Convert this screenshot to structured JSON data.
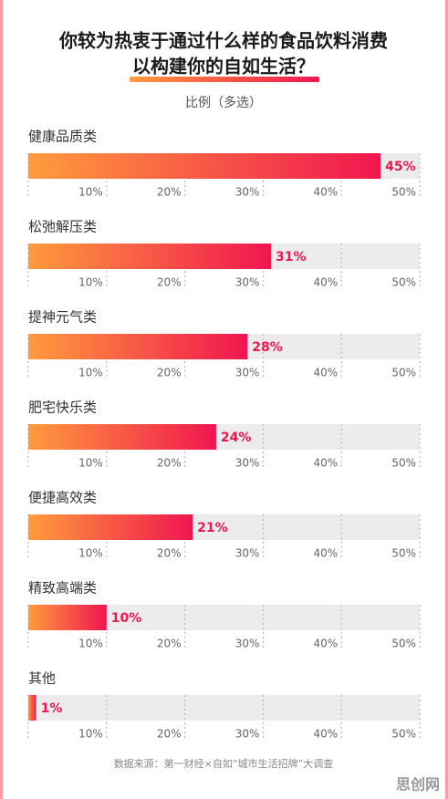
{
  "chart_data": {
    "type": "bar",
    "title": [
      "你较为热衷于通过什么样的食品饮料消费",
      "以构建你的自如生活？"
    ],
    "subtitle": "比例（多选）",
    "categories": [
      "健康品质类",
      "松弛解压类",
      "提神元气类",
      "肥宅快乐类",
      "便捷高效类",
      "精致高端类",
      "其他"
    ],
    "values": [
      45,
      31,
      28,
      24,
      21,
      10,
      1
    ],
    "value_labels": [
      "45%",
      "31%",
      "28%",
      "24%",
      "21%",
      "10%",
      "1%"
    ],
    "colors": [
      "#ff9b3d",
      "#f0164f"
    ],
    "xlim": [
      0,
      50
    ],
    "xticks": [
      {
        "value": 10,
        "label": "10%"
      },
      {
        "value": 20,
        "label": "20%"
      },
      {
        "value": 30,
        "label": "30%"
      },
      {
        "value": 40,
        "label": "40%"
      },
      {
        "value": 50,
        "label": "50%"
      }
    ],
    "source": "数据来源：第一财经×自如“城市生活招牌”大调查",
    "watermark": "思创网"
  }
}
